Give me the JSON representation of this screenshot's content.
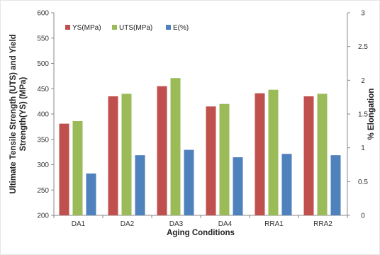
{
  "chart_data": {
    "type": "bar",
    "categories": [
      "DA1",
      "DA2",
      "DA3",
      "DA4",
      "RRA1",
      "RRA2"
    ],
    "series": [
      {
        "name": "YS(MPa)",
        "axis": "left",
        "color": "#c0504d",
        "values": [
          381,
          435,
          455,
          415,
          441,
          435
        ]
      },
      {
        "name": "UTS(MPa)",
        "axis": "left",
        "color": "#9bbb59",
        "values": [
          386,
          440,
          471,
          420,
          448,
          440
        ]
      },
      {
        "name": "E(%)",
        "axis": "right",
        "color": "#4f81bd",
        "values": [
          0.62,
          0.89,
          0.97,
          0.86,
          0.91,
          0.89
        ]
      }
    ],
    "xlabel": "Aging Conditions",
    "ylabel": [
      "Ultimate Tensile Strength (UTS) and Yield",
      "Strength(YS) (MPa)"
    ],
    "y2label": "% Elongation",
    "ylim": [
      200,
      600
    ],
    "y2lim": [
      0,
      3
    ],
    "yticks": [
      200,
      250,
      300,
      350,
      400,
      450,
      500,
      550,
      600
    ],
    "y2ticks": [
      "0",
      "0.5",
      "1",
      "1.5",
      "2",
      "2.5",
      "3"
    ],
    "legend_position": "top-left",
    "grid": false
  }
}
